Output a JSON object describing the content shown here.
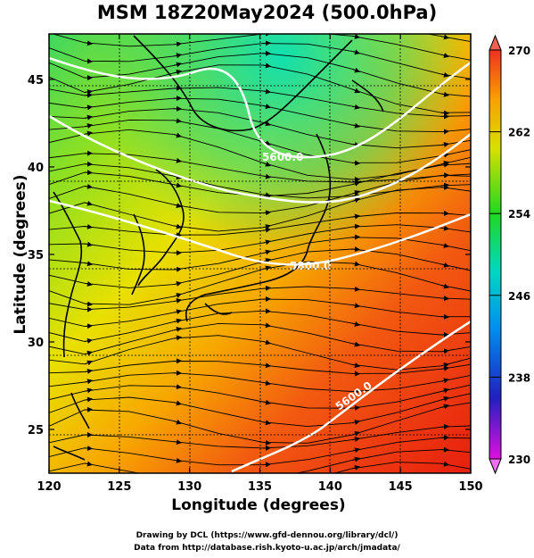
{
  "title": "MSM 18Z20May2024 (500.0hPa)",
  "xlabel": "Longitude (degrees)",
  "ylabel": "Latitude  (degrees)",
  "credit_line1": "Drawing by DCL (https://www.gfd-dennou.org/library/dcl/)",
  "credit_line2": "Data from http://database.rish.kyoto-u.ac.jp/arch/jmadata/",
  "x_ticks": [
    "120",
    "125",
    "130",
    "135",
    "140",
    "145",
    "150"
  ],
  "y_ticks": [
    "25",
    "30",
    "35",
    "40",
    "45"
  ],
  "colorbar_ticks": [
    "230",
    "238",
    "246",
    "254",
    "262",
    "270"
  ],
  "contour_labels": [
    "5600.0",
    "5800.0",
    "5600.0"
  ],
  "chart_data": {
    "type": "heatmap",
    "variable": "temperature with streamlines and height contours",
    "xlim": [
      120,
      150
    ],
    "ylim": [
      22.5,
      47.6
    ],
    "colorbar_range": [
      230,
      270
    ],
    "colorbar_ticks": [
      230,
      238,
      246,
      254,
      262,
      270
    ],
    "contour_levels": [
      5400,
      5500,
      5600,
      5700,
      5800
    ],
    "labeled_contours": [
      {
        "label": "5600.0",
        "lon": 137.5,
        "lat": 42.2
      },
      {
        "label": "5800.0",
        "lon": 137.2,
        "lat": 35.0
      },
      {
        "label": "5600.0",
        "lon": 139.0,
        "lat": 26.5
      }
    ],
    "grid": true,
    "colors": {
      "warm": "#f03a18",
      "mid": "#e8e800",
      "cool": "#00e3a0",
      "contour": "#ffffff",
      "streamline": "#000000"
    }
  }
}
